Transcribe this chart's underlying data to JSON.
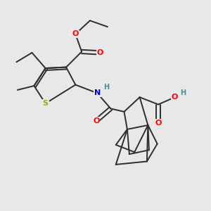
{
  "background_color": "#e8e8e8",
  "fig_width": 3.0,
  "fig_height": 3.0,
  "dpi": 100,
  "bond_color": "#2d2d2d",
  "bond_width": 1.4,
  "atom_colors": {
    "O": "#ff0000",
    "N": "#0000cc",
    "S": "#aaaa00",
    "H": "#4a9090",
    "C": "#2d2d2d"
  },
  "font_size": 8.0,
  "font_size_small": 7.0
}
